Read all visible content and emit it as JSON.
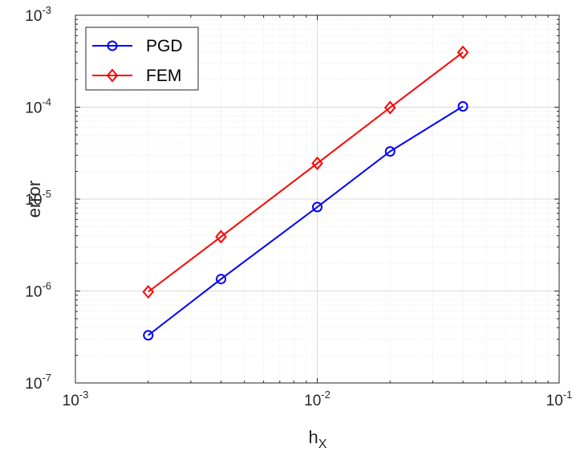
{
  "chart_data": {
    "type": "line",
    "xscale": "log",
    "yscale": "log",
    "xlim": [
      0.001,
      0.1
    ],
    "ylim": [
      1e-07,
      0.001
    ],
    "grid": true,
    "minor_grid": true,
    "xlabel": "h",
    "xlabel_sub": "X",
    "ylabel": "error",
    "legend_position": "top-left",
    "x_ticks": [
      {
        "value": 0.001,
        "base": "10",
        "exp": "-3"
      },
      {
        "value": 0.01,
        "base": "10",
        "exp": "-2"
      },
      {
        "value": 0.1,
        "base": "10",
        "exp": "-1"
      }
    ],
    "y_ticks": [
      {
        "value": 1e-07,
        "base": "10",
        "exp": "-7"
      },
      {
        "value": 1e-06,
        "base": "10",
        "exp": "-6"
      },
      {
        "value": 1e-05,
        "base": "10",
        "exp": "-5"
      },
      {
        "value": 0.0001,
        "base": "10",
        "exp": "-4"
      },
      {
        "value": 0.001,
        "base": "10",
        "exp": "-3"
      }
    ],
    "series": [
      {
        "name": "PGD",
        "color": "#0000ff",
        "marker": "circle",
        "x": [
          0.002,
          0.004,
          0.01,
          0.02,
          0.04
        ],
        "y": [
          3.3e-07,
          1.35e-06,
          8.2e-06,
          3.3e-05,
          0.000102
        ]
      },
      {
        "name": "FEM",
        "color": "#ff0000",
        "marker": "diamond",
        "x": [
          0.002,
          0.004,
          0.01,
          0.02,
          0.04
        ],
        "y": [
          9.8e-07,
          3.9e-06,
          2.45e-05,
          9.9e-05,
          0.000395
        ]
      }
    ]
  }
}
